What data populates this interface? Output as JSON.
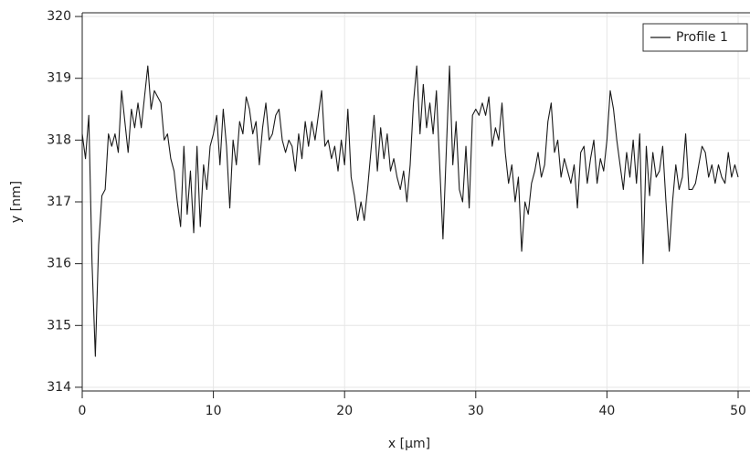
{
  "chart_data": {
    "type": "line",
    "xlabel": "x [µm]",
    "ylabel": "y [nm]",
    "x": [
      0,
      0.25,
      0.5,
      0.75,
      1,
      1.25,
      1.5,
      1.75,
      2,
      2.25,
      2.5,
      2.75,
      3,
      3.25,
      3.5,
      3.75,
      4,
      4.25,
      4.5,
      4.75,
      5,
      5.25,
      5.5,
      5.75,
      6,
      6.25,
      6.5,
      6.75,
      7,
      7.25,
      7.5,
      7.75,
      8,
      8.25,
      8.5,
      8.75,
      9,
      9.25,
      9.5,
      9.75,
      10,
      10.25,
      10.5,
      10.75,
      11,
      11.25,
      11.5,
      11.75,
      12,
      12.25,
      12.5,
      12.75,
      13,
      13.25,
      13.5,
      13.75,
      14,
      14.25,
      14.5,
      14.75,
      15,
      15.25,
      15.5,
      15.75,
      16,
      16.25,
      16.5,
      16.75,
      17,
      17.25,
      17.5,
      17.75,
      18,
      18.25,
      18.5,
      18.75,
      19,
      19.25,
      19.5,
      19.75,
      20,
      20.25,
      20.5,
      20.75,
      21,
      21.25,
      21.5,
      21.75,
      22,
      22.25,
      22.5,
      22.75,
      23,
      23.25,
      23.5,
      23.75,
      24,
      24.25,
      24.5,
      24.75,
      25,
      25.25,
      25.5,
      25.75,
      26,
      26.25,
      26.5,
      26.75,
      27,
      27.25,
      27.5,
      27.75,
      28,
      28.25,
      28.5,
      28.75,
      29,
      29.25,
      29.5,
      29.75,
      30,
      30.25,
      30.5,
      30.75,
      31,
      31.25,
      31.5,
      31.75,
      32,
      32.25,
      32.5,
      32.75,
      33,
      33.25,
      33.5,
      33.75,
      34,
      34.25,
      34.5,
      34.75,
      35,
      35.25,
      35.5,
      35.75,
      36,
      36.25,
      36.5,
      36.75,
      37,
      37.25,
      37.5,
      37.75,
      38,
      38.25,
      38.5,
      38.75,
      39,
      39.25,
      39.5,
      39.75,
      40,
      40.25,
      40.5,
      40.75,
      41,
      41.25,
      41.5,
      41.75,
      42,
      42.25,
      42.5,
      42.75,
      43,
      43.25,
      43.5,
      43.75,
      44,
      44.25,
      44.5,
      44.75,
      45,
      45.25,
      45.5,
      45.75,
      46,
      46.25,
      46.5,
      46.75,
      47,
      47.25,
      47.5,
      47.75,
      48,
      48.25,
      48.5,
      48.75,
      49,
      49.25,
      49.5,
      49.75,
      50
    ],
    "series": [
      {
        "name": "Profile 1",
        "color": "#1a1a1a",
        "values": [
          318.1,
          317.7,
          318.4,
          316.0,
          314.5,
          316.3,
          317.1,
          317.2,
          318.1,
          317.9,
          318.1,
          317.8,
          318.8,
          318.3,
          317.8,
          318.5,
          318.2,
          318.6,
          318.2,
          318.7,
          319.2,
          318.5,
          318.8,
          318.7,
          318.6,
          318.0,
          318.1,
          317.7,
          317.5,
          317.0,
          316.6,
          317.9,
          316.8,
          317.5,
          316.5,
          317.9,
          316.6,
          317.6,
          317.2,
          317.9,
          318.1,
          318.4,
          317.6,
          318.5,
          317.9,
          316.9,
          318.0,
          317.6,
          318.3,
          318.1,
          318.7,
          318.5,
          318.1,
          318.3,
          317.6,
          318.2,
          318.6,
          318.0,
          318.1,
          318.4,
          318.5,
          318.0,
          317.8,
          318.0,
          317.9,
          317.5,
          318.1,
          317.7,
          318.3,
          317.9,
          318.3,
          318.0,
          318.4,
          318.8,
          317.9,
          318.0,
          317.7,
          317.9,
          317.5,
          318.0,
          317.6,
          318.5,
          317.4,
          317.1,
          316.7,
          317.0,
          316.7,
          317.2,
          317.8,
          318.4,
          317.5,
          318.2,
          317.7,
          318.1,
          317.5,
          317.7,
          317.4,
          317.2,
          317.5,
          317.0,
          317.6,
          318.6,
          319.2,
          318.1,
          318.9,
          318.2,
          318.6,
          318.1,
          318.8,
          317.6,
          316.4,
          317.8,
          319.2,
          317.6,
          318.3,
          317.2,
          317.0,
          317.9,
          316.9,
          318.4,
          318.5,
          318.4,
          318.6,
          318.4,
          318.7,
          317.9,
          318.2,
          318.0,
          318.6,
          317.8,
          317.3,
          317.6,
          317.0,
          317.4,
          316.2,
          317.0,
          316.8,
          317.3,
          317.5,
          317.8,
          317.4,
          317.6,
          318.3,
          318.6,
          317.8,
          318.0,
          317.4,
          317.7,
          317.5,
          317.3,
          317.6,
          316.9,
          317.8,
          317.9,
          317.3,
          317.7,
          318.0,
          317.3,
          317.7,
          317.5,
          318.0,
          318.8,
          318.5,
          318.0,
          317.6,
          317.2,
          317.8,
          317.4,
          318.0,
          317.3,
          318.1,
          316.0,
          317.9,
          317.1,
          317.8,
          317.4,
          317.5,
          317.9,
          317.0,
          316.2,
          317.0,
          317.6,
          317.2,
          317.4,
          318.1,
          317.2,
          317.2,
          317.3,
          317.6,
          317.9,
          317.8,
          317.4,
          317.6,
          317.3,
          317.6,
          317.4,
          317.3,
          317.8,
          317.4,
          317.6,
          317.4
        ]
      }
    ],
    "xlim": [
      0,
      50
    ],
    "ylim": [
      313.94,
      320.06
    ],
    "xticks": [
      0,
      10,
      20,
      30,
      40,
      50
    ],
    "yticks": [
      314,
      315,
      316,
      317,
      318,
      319,
      320
    ],
    "grid": true,
    "legend": "upper right"
  }
}
